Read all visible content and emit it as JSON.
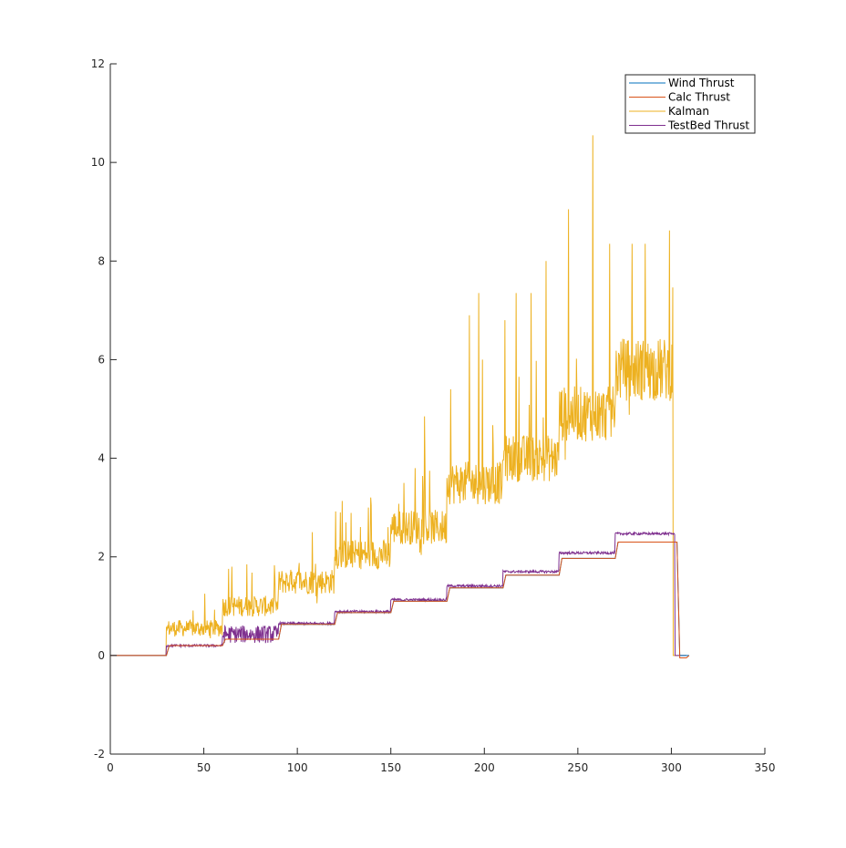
{
  "chart_data": {
    "type": "line",
    "title": "",
    "xlabel": "",
    "ylabel": "",
    "xlim": [
      0,
      350
    ],
    "ylim": [
      -2,
      12
    ],
    "xticks": [
      0,
      50,
      100,
      150,
      200,
      250,
      300,
      350
    ],
    "yticks": [
      -2,
      0,
      2,
      4,
      6,
      8,
      10,
      12
    ],
    "grid": false,
    "legend_position": "top-right",
    "colors": {
      "wind": "#0072BD",
      "calc": "#D95319",
      "kalman": "#EDB120",
      "testbed": "#7E2F8E"
    },
    "series": [
      {
        "name": "Wind Thrust",
        "key": "wind",
        "steps": [
          [
            0,
            0
          ],
          [
            30,
            0.2
          ],
          [
            60,
            0.33
          ],
          [
            90,
            0.63
          ],
          [
            120,
            0.87
          ],
          [
            150,
            1.1
          ],
          [
            180,
            1.37
          ],
          [
            210,
            1.63
          ],
          [
            240,
            1.97
          ],
          [
            270,
            2.3
          ],
          [
            303,
            0
          ],
          [
            308,
            0
          ]
        ]
      },
      {
        "name": "Calc Thrust",
        "key": "calc",
        "steps": [
          [
            0,
            0
          ],
          [
            30,
            0.2
          ],
          [
            60,
            0.33
          ],
          [
            90,
            0.63
          ],
          [
            120,
            0.87
          ],
          [
            150,
            1.1
          ],
          [
            180,
            1.37
          ],
          [
            210,
            1.63
          ],
          [
            240,
            1.97
          ],
          [
            270,
            2.3
          ],
          [
            303,
            -0.05
          ],
          [
            308,
            0
          ]
        ]
      },
      {
        "name": "Kalman",
        "key": "kalman",
        "levels": [
          [
            0,
            0
          ],
          [
            30,
            0.55
          ],
          [
            60,
            1.0
          ],
          [
            90,
            1.5
          ],
          [
            120,
            2.05
          ],
          [
            150,
            2.6
          ],
          [
            180,
            3.5
          ],
          [
            210,
            4.0
          ],
          [
            240,
            4.9
          ],
          [
            270,
            5.8
          ],
          [
            301,
            0
          ],
          [
            308,
            0
          ]
        ],
        "spikes": [
          [
            258,
            10.55
          ],
          [
            245,
            9.05
          ],
          [
            299,
            8.62
          ],
          [
            233,
            8.0
          ],
          [
            267,
            8.35
          ],
          [
            279,
            8.35
          ],
          [
            286,
            8.35
          ],
          [
            192,
            6.9
          ],
          [
            197,
            7.35
          ],
          [
            217,
            7.35
          ],
          [
            225,
            7.35
          ],
          [
            182,
            5.4
          ],
          [
            199,
            6.0
          ],
          [
            211,
            6.8
          ],
          [
            168,
            4.85
          ],
          [
            163,
            3.8
          ],
          [
            157,
            3.5
          ],
          [
            138,
            3.0
          ],
          [
            123,
            2.9
          ],
          [
            108,
            2.5
          ],
          [
            126,
            2.7
          ],
          [
            73,
            1.85
          ],
          [
            65,
            1.8
          ],
          [
            97,
            1.7
          ],
          [
            88,
            1.6
          ]
        ]
      },
      {
        "name": "TestBed Thrust",
        "key": "testbed",
        "levels": [
          [
            0,
            0
          ],
          [
            30,
            0.2
          ],
          [
            60,
            0.43
          ],
          [
            90,
            0.65
          ],
          [
            120,
            0.89
          ],
          [
            150,
            1.13
          ],
          [
            180,
            1.41
          ],
          [
            210,
            1.7
          ],
          [
            240,
            2.08
          ],
          [
            270,
            2.47
          ],
          [
            302,
            0
          ],
          [
            308,
            0
          ]
        ]
      }
    ]
  }
}
